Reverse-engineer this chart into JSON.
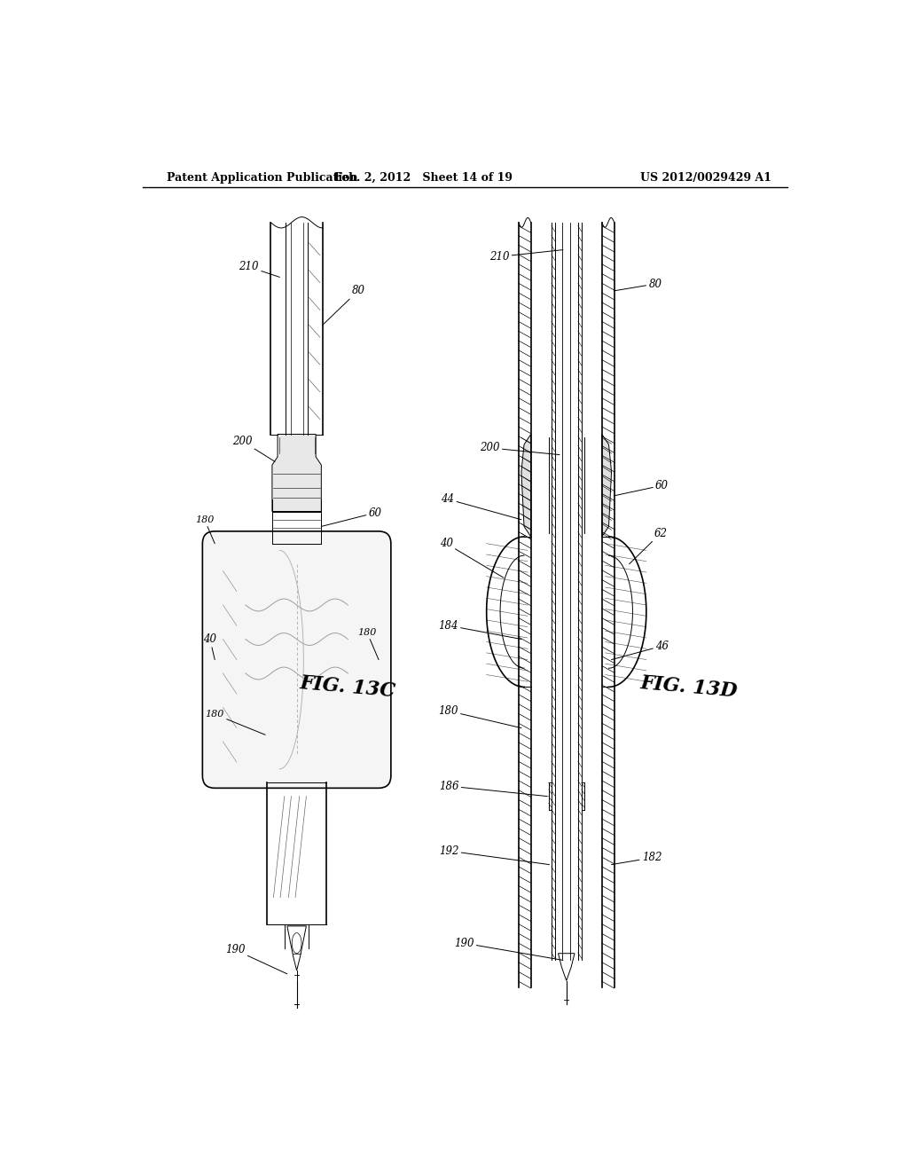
{
  "header_left": "Patent Application Publication",
  "header_center": "Feb. 2, 2012   Sheet 14 of 19",
  "header_right": "US 2012/0029429 A1",
  "fig_left_label": "FIG. 13C",
  "fig_right_label": "FIG. 13D",
  "background_color": "#ffffff",
  "line_color": "#000000"
}
